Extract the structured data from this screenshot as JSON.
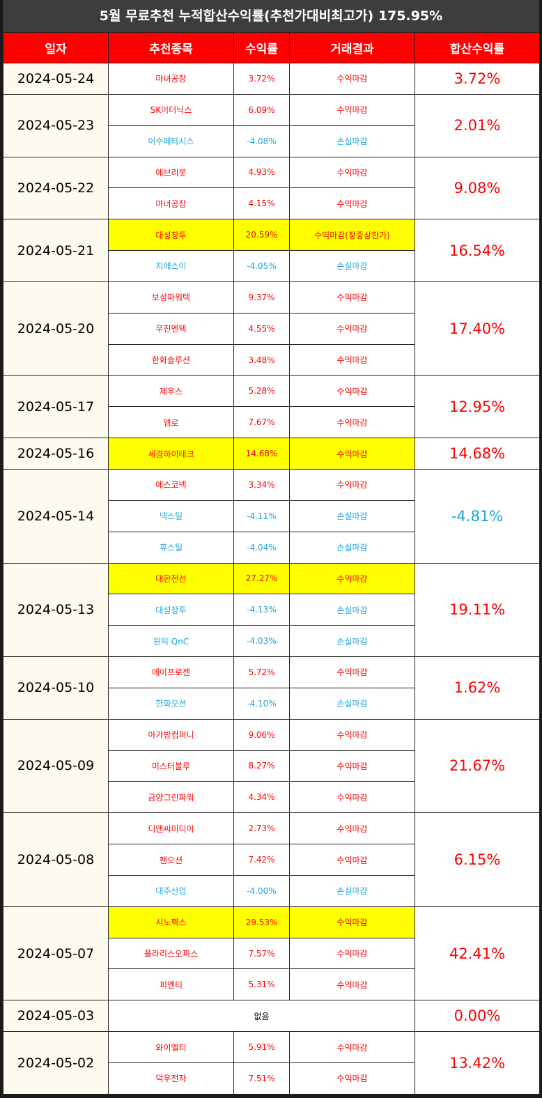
{
  "title": "5월 무료추천 누적합산수익률(추천가대비최고가) 175.95%",
  "table": {
    "header": [
      "일자",
      "추천종목",
      "수익률",
      "거래결과",
      "합산수익률"
    ],
    "groups": [
      {
        "date": "2024-05-24",
        "total": "3.72%",
        "total_color": "#ff0000",
        "rows": [
          {
            "stock": "마녀공장",
            "return": "3.72%",
            "result": "수익마감",
            "color": "#ff0000"
          }
        ]
      },
      {
        "date": "2024-05-23",
        "total": "2.01%",
        "total_color": "#ff0000",
        "rows": [
          {
            "stock": "SK이터닉스",
            "return": "6.09%",
            "result": "수익마감",
            "color": "#ff0000"
          },
          {
            "stock": "이수페타시스",
            "return": "-4.08%",
            "result": "손실마감",
            "color": "#1ea4dc"
          }
        ]
      },
      {
        "date": "2024-05-22",
        "total": "9.08%",
        "total_color": "#ff0000",
        "rows": [
          {
            "stock": "에브리봇",
            "return": "4.93%",
            "result": "수익마감",
            "color": "#ff0000"
          },
          {
            "stock": "마녀공장",
            "return": "4.15%",
            "result": "수익마감",
            "color": "#ff0000"
          }
        ]
      },
      {
        "date": "2024-05-21",
        "total": "16.54%",
        "total_color": "#ff0000",
        "rows": [
          {
            "stock": "대성창투",
            "return": "20.59%",
            "result": "수익마감(장중상한가)",
            "color": "#ff0000",
            "highlight": "#ffff00"
          },
          {
            "stock": "지에스이",
            "return": "-4.05%",
            "result": "손실마감",
            "color": "#1ea4dc"
          }
        ]
      },
      {
        "date": "2024-05-20",
        "total": "17.40%",
        "total_color": "#ff0000",
        "rows": [
          {
            "stock": "보성파워텍",
            "return": "9.37%",
            "result": "수익마감",
            "color": "#ff0000"
          },
          {
            "stock": "우진엔텍",
            "return": "4.55%",
            "result": "수익마감",
            "color": "#ff0000"
          },
          {
            "stock": "한화솔루션",
            "return": "3.48%",
            "result": "수익마감",
            "color": "#ff0000"
          }
        ]
      },
      {
        "date": "2024-05-17",
        "total": "12.95%",
        "total_color": "#ff0000",
        "rows": [
          {
            "stock": "제우스",
            "return": "5.28%",
            "result": "수익마감",
            "color": "#ff0000"
          },
          {
            "stock": "엠로",
            "return": "7.67%",
            "result": "수익마감",
            "color": "#ff0000"
          }
        ]
      },
      {
        "date": "2024-05-16",
        "total": "14.68%",
        "total_color": "#ff0000",
        "rows": [
          {
            "stock": "세경하이테크",
            "return": "14.68%",
            "result": "수익마감",
            "color": "#ff0000",
            "highlight": "#ffff00"
          }
        ]
      },
      {
        "date": "2024-05-14",
        "total": "-4.81%",
        "total_color": "#1ea4dc",
        "rows": [
          {
            "stock": "에스코넥",
            "return": "3.34%",
            "result": "수익마감",
            "color": "#ff0000"
          },
          {
            "stock": "넥스틸",
            "return": "-4.11%",
            "result": "손실마감",
            "color": "#1ea4dc"
          },
          {
            "stock": "휴스틸",
            "return": "-4.04%",
            "result": "손실마감",
            "color": "#1ea4dc"
          }
        ]
      },
      {
        "date": "2024-05-13",
        "total": "19.11%",
        "total_color": "#ff0000",
        "rows": [
          {
            "stock": "대한전선",
            "return": "27.27%",
            "result": "수익마감",
            "color": "#ff0000",
            "highlight": "#ffff00"
          },
          {
            "stock": "대성창투",
            "return": "-4.13%",
            "result": "손실마감",
            "color": "#1ea4dc"
          },
          {
            "stock": "원익 QnC",
            "return": "-4.03%",
            "result": "손실마감",
            "color": "#1ea4dc"
          }
        ]
      },
      {
        "date": "2024-05-10",
        "total": "1.62%",
        "total_color": "#ff0000",
        "rows": [
          {
            "stock": "에이프로젠",
            "return": "5.72%",
            "result": "수익마감",
            "color": "#ff0000"
          },
          {
            "stock": "한화오션",
            "return": "-4.10%",
            "result": "손실마감",
            "color": "#1ea4dc"
          }
        ]
      },
      {
        "date": "2024-05-09",
        "total": "21.67%",
        "total_color": "#ff0000",
        "rows": [
          {
            "stock": "아가방컴퍼니",
            "return": "9.06%",
            "result": "수익마감",
            "color": "#ff0000"
          },
          {
            "stock": "미스터블루",
            "return": "8.27%",
            "result": "수익마감",
            "color": "#ff0000"
          },
          {
            "stock": "금양그린파워",
            "return": "4.34%",
            "result": "수익마감",
            "color": "#ff0000"
          }
        ]
      },
      {
        "date": "2024-05-08",
        "total": "6.15%",
        "total_color": "#ff0000",
        "rows": [
          {
            "stock": "디앤씨미디어",
            "return": "2.73%",
            "result": "수익마감",
            "color": "#ff0000"
          },
          {
            "stock": "팬오션",
            "return": "7.42%",
            "result": "수익마감",
            "color": "#ff0000"
          },
          {
            "stock": "대주산업",
            "return": "-4.00%",
            "result": "손실마감",
            "color": "#1ea4dc"
          }
        ]
      },
      {
        "date": "2024-05-07",
        "total": "42.41%",
        "total_color": "#ff0000",
        "rows": [
          {
            "stock": "시노펙스",
            "return": "29.53%",
            "result": "수익마감",
            "color": "#ff0000",
            "highlight": "#ffff00"
          },
          {
            "stock": "폴라리스오피스",
            "return": "7.57%",
            "result": "수익마감",
            "color": "#ff0000"
          },
          {
            "stock": "피엔티",
            "return": "5.31%",
            "result": "수익마감",
            "color": "#ff0000"
          }
        ]
      },
      {
        "date": "2024-05-03",
        "total": "0.00%",
        "total_color": "#ff0000",
        "note": "없음"
      },
      {
        "date": "2024-05-02",
        "total": "13.42%",
        "total_color": "#ff0000",
        "rows": [
          {
            "stock": "와이엘티",
            "return": "5.91%",
            "result": "수익마감",
            "color": "#ff0000"
          },
          {
            "stock": "덕우전자",
            "return": "7.51%",
            "result": "수익마감",
            "color": "#ff0000"
          }
        ]
      }
    ]
  }
}
